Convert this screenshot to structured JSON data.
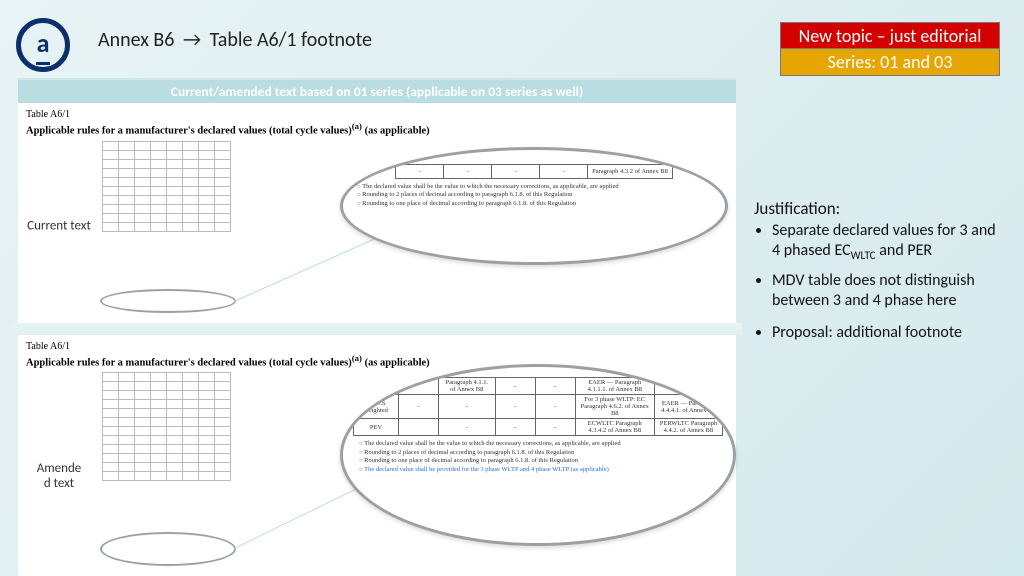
{
  "logo": {
    "glyph": "a",
    "color": "#0a2f6b"
  },
  "breadcrumb": {
    "left": "Annex B6",
    "arrow": "→",
    "right": "Table A6/1 footnote"
  },
  "badges": {
    "topic": {
      "text": "New topic – just editorial",
      "bg": "#d40000",
      "fg": "#ffffff"
    },
    "series": {
      "text": "Series: 01 and 03",
      "bg": "#e6a500",
      "fg": "#ffffff"
    }
  },
  "panel": {
    "header": "Current/amended text based on 01 series (applicable on 03 series as well)",
    "caption": "Table A6/1",
    "title_html": "Applicable rules for a manufacturer's declared values (total cycle values)<sup>(a)</sup> (as applicable)"
  },
  "labels": {
    "current": "Current text",
    "amended": "Amended text"
  },
  "mini_table": {
    "rows": 10,
    "cols": 8
  },
  "mini_ellipse": {
    "border": "#9aa0a6"
  },
  "zoom_current": {
    "row": [
      "-",
      "-",
      "-",
      "-",
      "Paragraph 4.3.2 of Annex B8"
    ],
    "footnotes": [
      "The declared value shall be the value to which the necessary corrections, as applicable, are applied",
      "Rounding to 2 places of decimal according to paragraph 6.1.8. of this Regulation",
      "Rounding to one place of decimal according to paragraph 6.1.8. of this Regulation"
    ]
  },
  "zoom_amended": {
    "rows": [
      [
        "",
        "",
        "Paragraph 4.1.1. of Annex B8",
        "-",
        "-",
        "EAER — Paragraph 4.1.1.1. of Annex B8",
        ""
      ],
      [
        "CD-CS weighted",
        "-",
        "-",
        "-",
        "-",
        "For 3 phase WLTP: EC Paragraph 4.6.2. of Annex B8",
        "EAER — Paragraph 4.4.4.1. of Annex B8"
      ],
      [
        "PEV",
        "",
        "-",
        "-",
        "-",
        "ECWLTC Paragraph 4.3.4.2 of Annex B8",
        "PERWLTC Paragraph 4.4.2. of Annex B8"
      ]
    ],
    "footnotes": [
      "The declared value shall be the value to which the necessary corrections, as applicable, are applied",
      "Rounding to 2 places of decimal according to paragraph 6.1.8. of this Regulation",
      "Rounding to one place of decimal according to paragraph 6.1.8. of this Regulation"
    ],
    "new_footnote": "The declared value shall be provided for the 3 phase WLTP and 4 phase WLTP (as applicable)"
  },
  "justification": {
    "heading": "Justification:",
    "bullets_html": [
      "Separate declared values for 3 and 4 phased EC<sub>WLTC</sub> and PER",
      "MDV table does not distinguish between 3 and 4 phase here",
      "Proposal: additional footnote"
    ]
  },
  "colors": {
    "header_bg": "#b9dde0",
    "ellipse_border": "#9aa0a6",
    "connector": "#b9dde0",
    "new_footnote": "#2a6fd6"
  }
}
